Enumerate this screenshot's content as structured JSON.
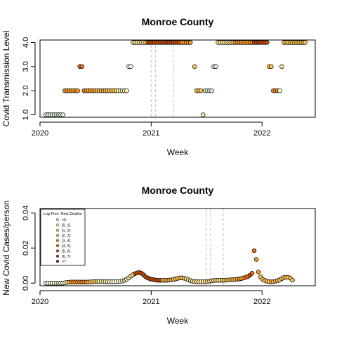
{
  "chart_data": [
    {
      "type": "scatter",
      "title": "Monroe County",
      "xlabel": "Week",
      "ylabel": "Covid Transmission Level",
      "xlim": [
        "2020-01-01",
        "2022-06-25"
      ],
      "ylim": [
        0.9,
        4.1
      ],
      "x_ticks": [
        {
          "date": "2020-01-01",
          "label": "2020"
        },
        {
          "date": "2021-01-01",
          "label": "2021"
        },
        {
          "date": "2022-01-01",
          "label": "2022"
        }
      ],
      "y_ticks": [
        {
          "value": 1,
          "label": "1.0"
        },
        {
          "value": 2,
          "label": "2.0"
        },
        {
          "value": 3,
          "label": "3.0"
        },
        {
          "value": 4,
          "label": "4.0"
        }
      ],
      "vlines": [
        "2021-01-01",
        "2021-01-15",
        "2021-03-15"
      ],
      "segments": [
        {
          "start": "2020-01-20",
          "end": "2020-03-16",
          "value": 1,
          "color": "#e0f3db"
        },
        {
          "start": "2020-03-23",
          "end": "2020-05-04",
          "value": 2,
          "color": "#fb9a29"
        },
        {
          "start": "2020-05-11",
          "end": "2020-05-18",
          "value": 3,
          "color": "#ec7014"
        },
        {
          "start": "2020-05-25",
          "end": "2020-06-29",
          "value": 2,
          "color": "#fb9a29"
        },
        {
          "start": "2020-07-06",
          "end": "2020-09-07",
          "value": 2,
          "color": "#fec44f"
        },
        {
          "start": "2020-09-14",
          "end": "2020-10-12",
          "value": 2,
          "color": "#fff7bc"
        },
        {
          "start": "2020-10-19",
          "end": "2020-10-26",
          "value": 3,
          "color": "#ffffe5"
        },
        {
          "start": "2020-11-02",
          "end": "2020-12-14",
          "value": 4,
          "color": "#fee391"
        },
        {
          "start": "2020-12-21",
          "end": "2021-04-05",
          "value": 4,
          "color": "#cc4c02"
        },
        {
          "start": "2021-04-12",
          "end": "2021-05-10",
          "value": 4,
          "color": "#fb9a29"
        },
        {
          "start": "2021-05-24",
          "end": "2021-05-24",
          "value": 3,
          "color": "#fec44f"
        },
        {
          "start": "2021-05-31",
          "end": "2021-06-14",
          "value": 2,
          "color": "#fec44f"
        },
        {
          "start": "2021-06-21",
          "end": "2021-06-21",
          "value": 1,
          "color": "#fee391"
        },
        {
          "start": "2021-06-28",
          "end": "2021-07-19",
          "value": 2,
          "color": "#e0f3db"
        },
        {
          "start": "2021-07-26",
          "end": "2021-08-02",
          "value": 3,
          "color": "#e0f3db"
        },
        {
          "start": "2021-08-09",
          "end": "2021-09-27",
          "value": 4,
          "color": "#fee391"
        },
        {
          "start": "2021-10-04",
          "end": "2021-11-29",
          "value": 4,
          "color": "#fb9a29"
        },
        {
          "start": "2021-12-06",
          "end": "2022-01-17",
          "value": 4,
          "color": "#cc4c02"
        },
        {
          "start": "2022-01-24",
          "end": "2022-01-31",
          "value": 3,
          "color": "#fec44f"
        },
        {
          "start": "2022-02-07",
          "end": "2022-02-21",
          "value": 2,
          "color": "#fb9a29"
        },
        {
          "start": "2022-02-28",
          "end": "2022-02-28",
          "value": 2,
          "color": "#ffffe5"
        },
        {
          "start": "2022-03-07",
          "end": "2022-03-07",
          "value": 3,
          "color": "#fee391"
        },
        {
          "start": "2022-03-14",
          "end": "2022-05-23",
          "value": 4,
          "color": "#fec44f"
        }
      ]
    },
    {
      "type": "scatter",
      "title": "Monroe County",
      "xlabel": "Week",
      "ylabel": "New Covid Cases/person",
      "xlim": [
        "2020-01-01",
        "2022-06-25"
      ],
      "ylim": [
        -0.0015,
        0.0425
      ],
      "x_ticks": [
        {
          "date": "2020-01-01",
          "label": "2020"
        },
        {
          "date": "2021-01-01",
          "label": "2021"
        },
        {
          "date": "2022-01-01",
          "label": "2022"
        }
      ],
      "y_ticks": [
        {
          "value": 0,
          "label": "0.00"
        },
        {
          "value": 0.02,
          "label": "0.02"
        },
        {
          "value": 0.04,
          "label": "0.04"
        }
      ],
      "vlines": [
        "2021-07-01",
        "2021-07-15",
        "2021-08-26"
      ],
      "legend": {
        "title": "Log Prev. New Deaths",
        "placement": "top-left",
        "entries": [
          {
            "label": "<0",
            "color": "#ffffe5"
          },
          {
            "label": "[0, 1)",
            "color": "#fff7bc"
          },
          {
            "label": "[1, 2)",
            "color": "#fee391"
          },
          {
            "label": "[2, 3)",
            "color": "#fec44f"
          },
          {
            "label": "[3, 4)",
            "color": "#fb9a29"
          },
          {
            "label": "[4, 5)",
            "color": "#ec7014"
          },
          {
            "label": "[5, 6)",
            "color": "#cc4c02"
          },
          {
            "label": "[6, 7)",
            "color": "#993404"
          },
          {
            "label": ">7",
            "color": "#662506"
          }
        ]
      },
      "series_start": "2020-01-20",
      "series_step_days": 7,
      "values": [
        0,
        0,
        0,
        0,
        0,
        0,
        0,
        0,
        0,
        0.0002,
        0.0004,
        0.0005,
        0.0006,
        0.0006,
        0.0006,
        0.0006,
        0.0006,
        0.0006,
        0.0006,
        0.0006,
        0.0006,
        0.0007,
        0.0008,
        0.0009,
        0.001,
        0.001,
        0.001,
        0.0009,
        0.0009,
        0.0008,
        0.0008,
        0.0008,
        0.0008,
        0.0008,
        0.0009,
        0.001,
        0.0012,
        0.0016,
        0.0022,
        0.003,
        0.004,
        0.0048,
        0.0054,
        0.0058,
        0.0061,
        0.0056,
        0.0047,
        0.0036,
        0.0029,
        0.0024,
        0.0021,
        0.0019,
        0.0017,
        0.0016,
        0.0016,
        0.0016,
        0.0016,
        0.0016,
        0.0017,
        0.0018,
        0.0021,
        0.0024,
        0.0027,
        0.0029,
        0.003,
        0.0028,
        0.0024,
        0.0019,
        0.0014,
        0.0011,
        0.0009,
        0.0008,
        0.0008,
        0.0008,
        0.0008,
        0.0008,
        0.0009,
        0.0011,
        0.0013,
        0.0015,
        0.0016,
        0.0016,
        0.0016,
        0.0016,
        0.0016,
        0.0017,
        0.0018,
        0.0019,
        0.002,
        0.0021,
        0.0022,
        0.0024,
        0.0026,
        0.0029,
        0.0033,
        0.0037,
        0.0045,
        0.0056,
        0.0185,
        0.0135,
        0.0063,
        0.0035,
        0.0022,
        0.0015,
        0.0011,
        0.0008,
        0.0007,
        0.0008,
        0.0011,
        0.0014,
        0.0019,
        0.0026,
        0.0032,
        0.0034,
        0.0033,
        0.0028,
        0.0017
      ],
      "colors": [
        "#ffffe5",
        "#ffffe5",
        "#ffffe5",
        "#ffffe5",
        "#ffffe5",
        "#ffffe5",
        "#ffffe5",
        "#ffffe5",
        "#ffffe5",
        "#fff7bc",
        "#fee391",
        "#fec44f",
        "#fb9a29",
        "#fb9a29",
        "#fb9a29",
        "#fb9a29",
        "#fb9a29",
        "#fb9a29",
        "#fb9a29",
        "#fb9a29",
        "#fec44f",
        "#fec44f",
        "#fec44f",
        "#fec44f",
        "#fec44f",
        "#fff7bc",
        "#fff7bc",
        "#fff7bc",
        "#fff7bc",
        "#fff7bc",
        "#fff7bc",
        "#fff7bc",
        "#ffffe5",
        "#ffffe5",
        "#ffffe5",
        "#ffffe5",
        "#ffffe5",
        "#fee391",
        "#fee391",
        "#fee391",
        "#fee391",
        "#fee391",
        "#cc4c02",
        "#cc4c02",
        "#cc4c02",
        "#cc4c02",
        "#cc4c02",
        "#cc4c02",
        "#cc4c02",
        "#cc4c02",
        "#cc4c02",
        "#cc4c02",
        "#cc4c02",
        "#cc4c02",
        "#cc4c02",
        "#fec44f",
        "#fec44f",
        "#fec44f",
        "#fec44f",
        "#fec44f",
        "#fec44f",
        "#fec44f",
        "#fec44f",
        "#fec44f",
        "#fec44f",
        "#fec44f",
        "#fee391",
        "#fee391",
        "#fee391",
        "#fee391",
        "#fee391",
        "#fee391",
        "#fee391",
        "#fee391",
        "#fee391",
        "#fee391",
        "#fee391",
        "#fee391",
        "#fee391",
        "#fee391",
        "#fee391",
        "#fee391",
        "#fee391",
        "#fec44f",
        "#fec44f",
        "#fec44f",
        "#fec44f",
        "#fec44f",
        "#fec44f",
        "#fec44f",
        "#fb9a29",
        "#fb9a29",
        "#fb9a29",
        "#fb9a29",
        "#ec7014",
        "#ec7014",
        "#cc4c02",
        "#ec7014",
        "#ec7014",
        "#fb9a29",
        "#fb9a29",
        "#fec44f",
        "#fec44f",
        "#fec44f",
        "#fec44f",
        "#fec44f",
        "#fec44f",
        "#fec44f",
        "#fec44f",
        "#fec44f",
        "#fec44f",
        "#fec44f",
        "#fec44f",
        "#fec44f",
        "#fec44f",
        "#fec44f",
        "#fec44f",
        "#fec44f"
      ]
    }
  ]
}
